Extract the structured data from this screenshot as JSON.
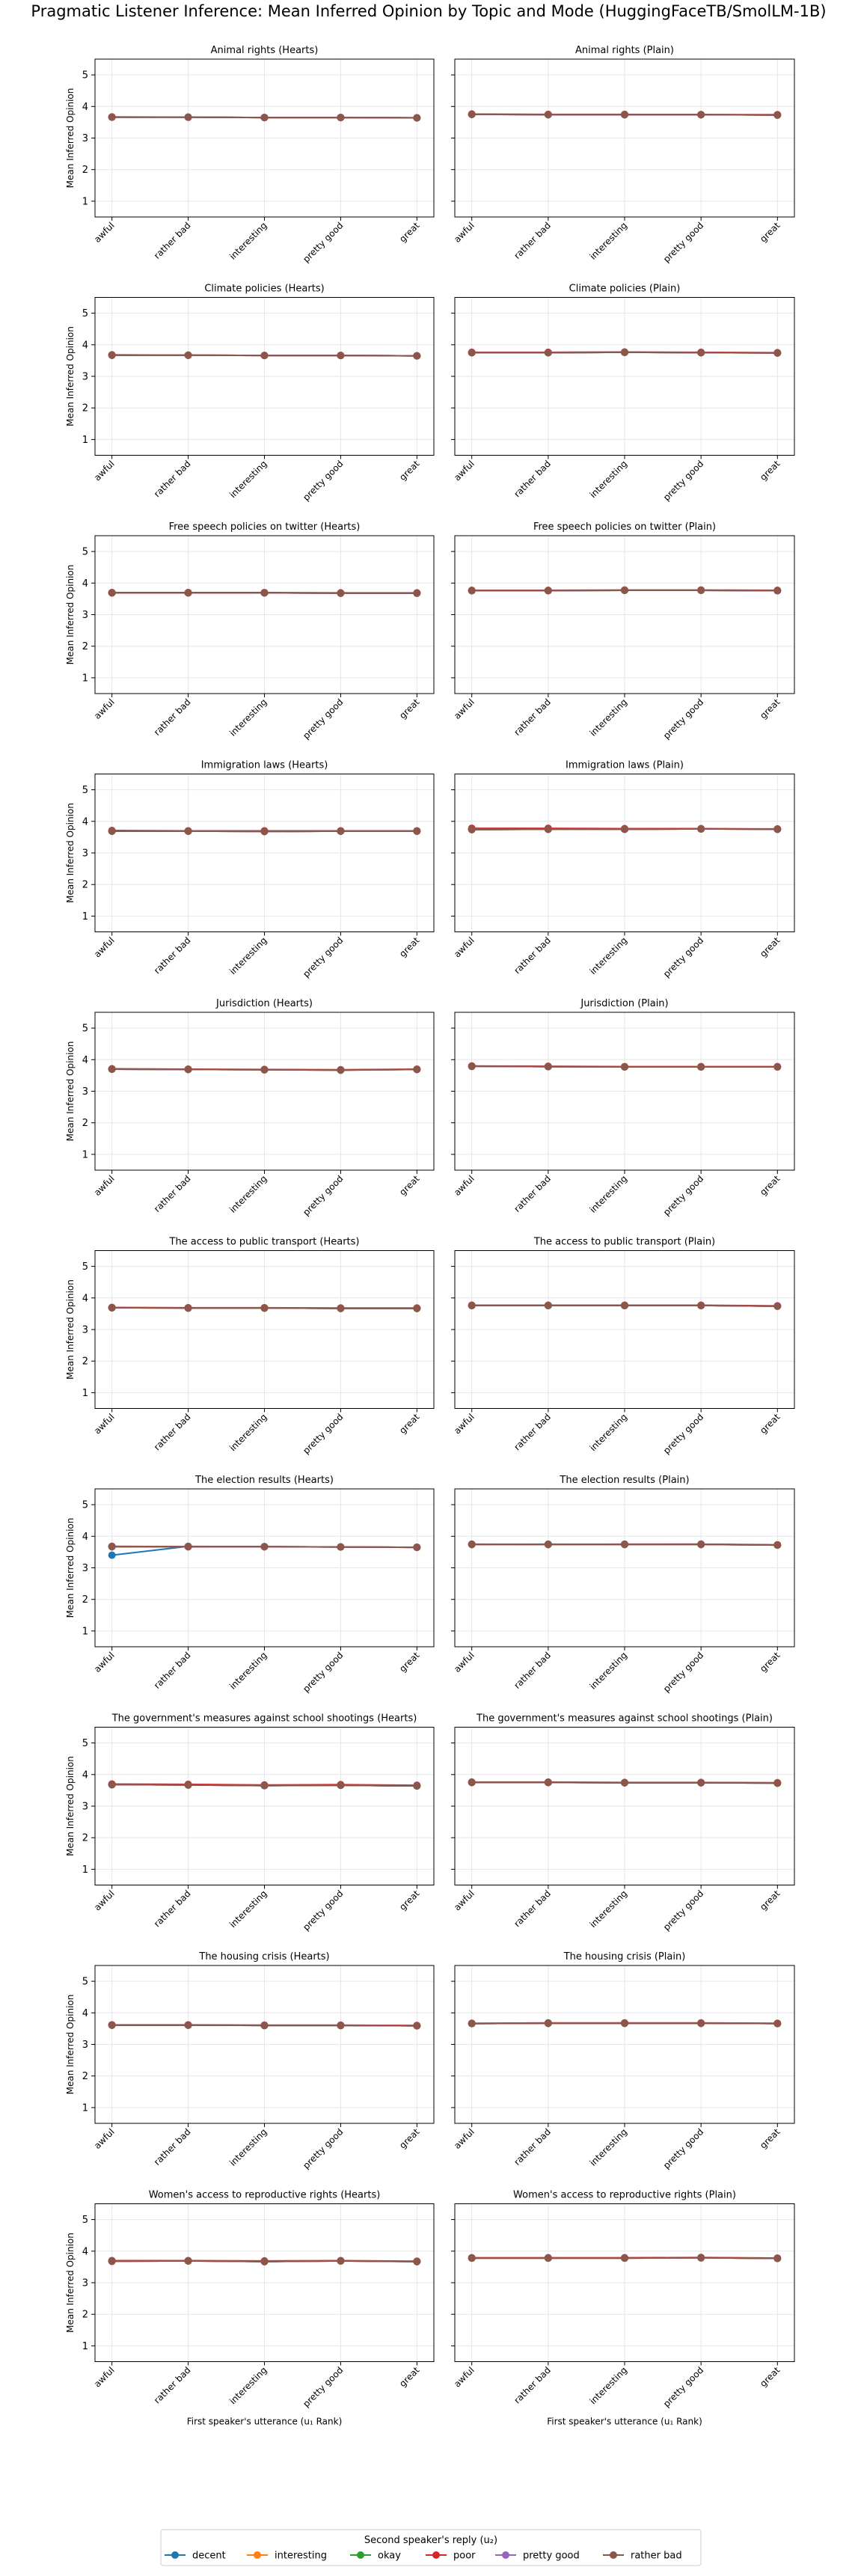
{
  "figure": {
    "title": "Pragmatic Listener Inference: Mean Inferred Opinion by Topic and Mode (HuggingFaceTB/SmolLM-1B)",
    "ylabel": "Mean Inferred Opinion",
    "xlabel": "First speaker's utterance (u₁ Rank)",
    "legend_title": "Second speaker's reply (u₂)"
  },
  "chart_data": {
    "type": "line",
    "categories": [
      "awful",
      "rather bad",
      "interesting",
      "pretty good",
      "great"
    ],
    "ylim": [
      0.5,
      5.5
    ],
    "yticks": [
      1,
      2,
      3,
      4,
      5
    ],
    "grid": true,
    "legend_placement": "bottom-center",
    "series_names": [
      "decent",
      "interesting",
      "okay",
      "poor",
      "pretty good",
      "rather bad"
    ],
    "series_colors": [
      "#1f77b4",
      "#ff7f0e",
      "#2ca02c",
      "#d62728",
      "#9467bd",
      "#8c564b"
    ],
    "panels": [
      {
        "title": "Animal rights (Hearts)",
        "values": [
          [
            3.66,
            3.66,
            3.65,
            3.65,
            3.64
          ],
          [
            3.66,
            3.66,
            3.65,
            3.65,
            3.64
          ],
          [
            3.66,
            3.66,
            3.65,
            3.65,
            3.64
          ],
          [
            3.67,
            3.66,
            3.65,
            3.65,
            3.64
          ],
          [
            3.66,
            3.66,
            3.65,
            3.65,
            3.64
          ],
          [
            3.66,
            3.66,
            3.65,
            3.65,
            3.64
          ]
        ]
      },
      {
        "title": "Animal rights (Plain)",
        "values": [
          [
            3.75,
            3.74,
            3.74,
            3.74,
            3.73
          ],
          [
            3.75,
            3.74,
            3.74,
            3.74,
            3.73
          ],
          [
            3.75,
            3.74,
            3.74,
            3.74,
            3.73
          ],
          [
            3.76,
            3.75,
            3.75,
            3.74,
            3.74
          ],
          [
            3.75,
            3.74,
            3.74,
            3.74,
            3.73
          ],
          [
            3.75,
            3.74,
            3.74,
            3.74,
            3.73
          ]
        ]
      },
      {
        "title": "Climate policies (Hearts)",
        "values": [
          [
            3.67,
            3.67,
            3.66,
            3.66,
            3.65
          ],
          [
            3.67,
            3.67,
            3.66,
            3.66,
            3.65
          ],
          [
            3.67,
            3.67,
            3.66,
            3.66,
            3.65
          ],
          [
            3.68,
            3.67,
            3.66,
            3.66,
            3.65
          ],
          [
            3.67,
            3.67,
            3.66,
            3.66,
            3.65
          ],
          [
            3.67,
            3.67,
            3.66,
            3.66,
            3.65
          ]
        ]
      },
      {
        "title": "Climate policies (Plain)",
        "values": [
          [
            3.75,
            3.75,
            3.76,
            3.75,
            3.74
          ],
          [
            3.75,
            3.75,
            3.76,
            3.75,
            3.74
          ],
          [
            3.75,
            3.75,
            3.76,
            3.75,
            3.74
          ],
          [
            3.76,
            3.76,
            3.77,
            3.76,
            3.75
          ],
          [
            3.75,
            3.75,
            3.76,
            3.75,
            3.74
          ],
          [
            3.75,
            3.75,
            3.76,
            3.75,
            3.74
          ]
        ]
      },
      {
        "title": "Free speech policies on twitter (Hearts)",
        "values": [
          [
            3.69,
            3.69,
            3.69,
            3.68,
            3.68
          ],
          [
            3.69,
            3.69,
            3.69,
            3.68,
            3.68
          ],
          [
            3.69,
            3.69,
            3.69,
            3.68,
            3.68
          ],
          [
            3.7,
            3.7,
            3.7,
            3.69,
            3.69
          ],
          [
            3.69,
            3.69,
            3.69,
            3.68,
            3.68
          ],
          [
            3.69,
            3.69,
            3.69,
            3.68,
            3.68
          ]
        ]
      },
      {
        "title": "Free speech policies on twitter (Plain)",
        "values": [
          [
            3.76,
            3.76,
            3.77,
            3.77,
            3.76
          ],
          [
            3.76,
            3.76,
            3.77,
            3.77,
            3.76
          ],
          [
            3.76,
            3.76,
            3.77,
            3.77,
            3.76
          ],
          [
            3.77,
            3.77,
            3.78,
            3.78,
            3.77
          ],
          [
            3.76,
            3.76,
            3.77,
            3.77,
            3.76
          ],
          [
            3.76,
            3.76,
            3.77,
            3.77,
            3.76
          ]
        ]
      },
      {
        "title": "Immigration laws (Hearts)",
        "values": [
          [
            3.69,
            3.69,
            3.68,
            3.69,
            3.69
          ],
          [
            3.69,
            3.69,
            3.68,
            3.69,
            3.69
          ],
          [
            3.69,
            3.69,
            3.68,
            3.69,
            3.69
          ],
          [
            3.71,
            3.7,
            3.7,
            3.7,
            3.7
          ],
          [
            3.69,
            3.69,
            3.68,
            3.69,
            3.69
          ],
          [
            3.69,
            3.69,
            3.68,
            3.69,
            3.69
          ]
        ]
      },
      {
        "title": "Immigration laws (Plain)",
        "values": [
          [
            3.74,
            3.75,
            3.75,
            3.76,
            3.75
          ],
          [
            3.74,
            3.75,
            3.75,
            3.76,
            3.75
          ],
          [
            3.74,
            3.75,
            3.75,
            3.76,
            3.75
          ],
          [
            3.78,
            3.78,
            3.77,
            3.77,
            3.76
          ],
          [
            3.74,
            3.75,
            3.75,
            3.76,
            3.75
          ],
          [
            3.74,
            3.75,
            3.75,
            3.76,
            3.75
          ]
        ]
      },
      {
        "title": "Jurisdiction (Hearts)",
        "values": [
          [
            3.7,
            3.69,
            3.68,
            3.67,
            3.69
          ],
          [
            3.7,
            3.69,
            3.68,
            3.67,
            3.69
          ],
          [
            3.7,
            3.69,
            3.68,
            3.67,
            3.69
          ],
          [
            3.71,
            3.7,
            3.69,
            3.68,
            3.7
          ],
          [
            3.7,
            3.69,
            3.68,
            3.67,
            3.69
          ],
          [
            3.7,
            3.69,
            3.68,
            3.67,
            3.69
          ]
        ]
      },
      {
        "title": "Jurisdiction (Plain)",
        "values": [
          [
            3.79,
            3.78,
            3.77,
            3.77,
            3.77
          ],
          [
            3.79,
            3.78,
            3.77,
            3.77,
            3.77
          ],
          [
            3.79,
            3.78,
            3.77,
            3.77,
            3.77
          ],
          [
            3.8,
            3.79,
            3.78,
            3.78,
            3.78
          ],
          [
            3.79,
            3.78,
            3.77,
            3.77,
            3.77
          ],
          [
            3.79,
            3.78,
            3.77,
            3.77,
            3.77
          ]
        ]
      },
      {
        "title": "The access to public transport (Hearts)",
        "values": [
          [
            3.69,
            3.68,
            3.68,
            3.67,
            3.67
          ],
          [
            3.69,
            3.68,
            3.68,
            3.67,
            3.67
          ],
          [
            3.69,
            3.68,
            3.68,
            3.67,
            3.67
          ],
          [
            3.7,
            3.69,
            3.69,
            3.68,
            3.68
          ],
          [
            3.69,
            3.68,
            3.68,
            3.67,
            3.67
          ],
          [
            3.69,
            3.68,
            3.68,
            3.67,
            3.67
          ]
        ]
      },
      {
        "title": "The access to public transport (Plain)",
        "values": [
          [
            3.76,
            3.76,
            3.76,
            3.76,
            3.74
          ],
          [
            3.76,
            3.76,
            3.76,
            3.76,
            3.74
          ],
          [
            3.76,
            3.76,
            3.76,
            3.76,
            3.74
          ],
          [
            3.77,
            3.77,
            3.77,
            3.77,
            3.75
          ],
          [
            3.76,
            3.76,
            3.76,
            3.76,
            3.74
          ],
          [
            3.76,
            3.76,
            3.76,
            3.76,
            3.74
          ]
        ]
      },
      {
        "title": "The election results (Hearts)",
        "values": [
          [
            3.4,
            3.68,
            3.67,
            3.66,
            3.65
          ],
          [
            3.67,
            3.67,
            3.67,
            3.66,
            3.65
          ],
          [
            3.67,
            3.67,
            3.67,
            3.66,
            3.65
          ],
          [
            3.68,
            3.67,
            3.67,
            3.66,
            3.65
          ],
          [
            3.67,
            3.67,
            3.67,
            3.66,
            3.65
          ],
          [
            3.67,
            3.67,
            3.67,
            3.66,
            3.65
          ]
        ]
      },
      {
        "title": "The election results (Plain)",
        "values": [
          [
            3.74,
            3.75,
            3.74,
            3.75,
            3.72
          ],
          [
            3.74,
            3.74,
            3.74,
            3.74,
            3.72
          ],
          [
            3.74,
            3.74,
            3.74,
            3.74,
            3.72
          ],
          [
            3.75,
            3.74,
            3.75,
            3.75,
            3.73
          ],
          [
            3.74,
            3.74,
            3.74,
            3.74,
            3.72
          ],
          [
            3.74,
            3.74,
            3.74,
            3.74,
            3.72
          ]
        ]
      },
      {
        "title": "The government's measures against school shootings (Hearts)",
        "values": [
          [
            3.68,
            3.67,
            3.65,
            3.66,
            3.64
          ],
          [
            3.68,
            3.67,
            3.65,
            3.66,
            3.64
          ],
          [
            3.68,
            3.67,
            3.65,
            3.66,
            3.64
          ],
          [
            3.7,
            3.69,
            3.67,
            3.68,
            3.66
          ],
          [
            3.68,
            3.67,
            3.65,
            3.66,
            3.64
          ],
          [
            3.68,
            3.67,
            3.65,
            3.66,
            3.64
          ]
        ]
      },
      {
        "title": "The government's measures against school shootings (Plain)",
        "values": [
          [
            3.75,
            3.75,
            3.74,
            3.74,
            3.73
          ],
          [
            3.75,
            3.75,
            3.74,
            3.74,
            3.73
          ],
          [
            3.75,
            3.75,
            3.74,
            3.74,
            3.73
          ],
          [
            3.76,
            3.76,
            3.75,
            3.75,
            3.74
          ],
          [
            3.75,
            3.75,
            3.74,
            3.74,
            3.73
          ],
          [
            3.75,
            3.75,
            3.74,
            3.74,
            3.73
          ]
        ]
      },
      {
        "title": "The housing crisis (Hearts)",
        "values": [
          [
            3.61,
            3.61,
            3.6,
            3.6,
            3.59
          ],
          [
            3.61,
            3.61,
            3.6,
            3.6,
            3.59
          ],
          [
            3.61,
            3.61,
            3.6,
            3.6,
            3.59
          ],
          [
            3.62,
            3.62,
            3.61,
            3.61,
            3.6
          ],
          [
            3.61,
            3.61,
            3.6,
            3.6,
            3.59
          ],
          [
            3.61,
            3.61,
            3.6,
            3.6,
            3.59
          ]
        ]
      },
      {
        "title": "The housing crisis (Plain)",
        "values": [
          [
            3.66,
            3.67,
            3.67,
            3.67,
            3.66
          ],
          [
            3.66,
            3.67,
            3.67,
            3.67,
            3.66
          ],
          [
            3.66,
            3.67,
            3.67,
            3.67,
            3.66
          ],
          [
            3.67,
            3.68,
            3.68,
            3.68,
            3.67
          ],
          [
            3.66,
            3.67,
            3.67,
            3.67,
            3.66
          ],
          [
            3.66,
            3.67,
            3.67,
            3.67,
            3.66
          ]
        ]
      },
      {
        "title": "Women's access to reproductive rights (Hearts)",
        "values": [
          [
            3.68,
            3.69,
            3.67,
            3.69,
            3.67
          ],
          [
            3.68,
            3.69,
            3.67,
            3.69,
            3.67
          ],
          [
            3.68,
            3.69,
            3.67,
            3.69,
            3.67
          ],
          [
            3.7,
            3.7,
            3.69,
            3.7,
            3.68
          ],
          [
            3.68,
            3.69,
            3.67,
            3.69,
            3.67
          ],
          [
            3.68,
            3.69,
            3.67,
            3.69,
            3.67
          ]
        ]
      },
      {
        "title": "Women's access to reproductive rights (Plain)",
        "values": [
          [
            3.78,
            3.78,
            3.78,
            3.79,
            3.77
          ],
          [
            3.78,
            3.78,
            3.78,
            3.79,
            3.77
          ],
          [
            3.78,
            3.78,
            3.78,
            3.79,
            3.77
          ],
          [
            3.79,
            3.79,
            3.79,
            3.8,
            3.78
          ],
          [
            3.78,
            3.78,
            3.78,
            3.79,
            3.77
          ],
          [
            3.78,
            3.78,
            3.78,
            3.79,
            3.77
          ]
        ]
      }
    ]
  }
}
